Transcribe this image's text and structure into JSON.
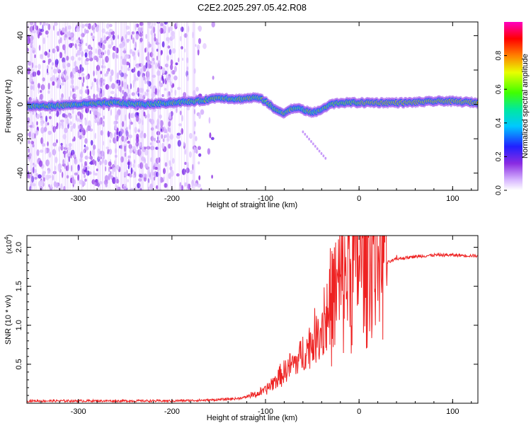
{
  "title": "C2E2.2025.297.05.42.R08",
  "chart_data": [
    {
      "type": "heatmap",
      "title": "C2E2.2025.297.05.42.R08",
      "xlabel": "Height of straight line (km)",
      "ylabel": "Frequency (Hz)",
      "xlim": [
        -355,
        127
      ],
      "ylim": [
        -50,
        48
      ],
      "xticks": [
        -300,
        -200,
        -100,
        0,
        100
      ],
      "xtick_labels": [
        "-300",
        "-200",
        "-100",
        "0",
        "100"
      ],
      "yticks": [
        -40,
        -20,
        0,
        20,
        40
      ],
      "ytick_labels": [
        "-40",
        "-20",
        "0",
        "20",
        "40"
      ],
      "colorbar": {
        "label": "Normalized spectral amplitude",
        "range": [
          0,
          1
        ],
        "ticks": [
          0.0,
          0.2,
          0.4,
          0.6,
          0.8
        ],
        "tick_labels": [
          "0.0",
          "0.2",
          "0.4",
          "0.6",
          "0.8"
        ],
        "colormap": "rainbow (white-violet-blue-cyan-green-yellow-red-magenta)"
      },
      "ridge": {
        "description": "Main spectral ridge frequency vs height",
        "x": [
          -355,
          -330,
          -300,
          -260,
          -230,
          -200,
          -170,
          -150,
          -130,
          -110,
          -100,
          -90,
          -80,
          -70,
          -60,
          -50,
          -40,
          -30,
          -20,
          0,
          50,
          90,
          127
        ],
        "y": [
          -1,
          -1,
          0,
          1,
          0,
          1,
          2,
          4,
          3,
          4,
          2,
          -3,
          -5,
          -2,
          -3,
          -5,
          -3,
          0,
          1,
          1,
          1,
          2,
          1
        ]
      }
    },
    {
      "type": "line",
      "title": "",
      "xlabel": "Height of straight line (km)",
      "ylabel": "SNR (10 * v/v)",
      "y_scale_label": "(x10",
      "y_scale_exp": "4",
      "y_scale_close": ")",
      "xlim": [
        -355,
        127
      ],
      "ylim": [
        0.0,
        2.15
      ],
      "xticks": [
        -300,
        -200,
        -100,
        0,
        100
      ],
      "xtick_labels": [
        "-300",
        "-200",
        "-100",
        "0",
        "100"
      ],
      "yticks": [
        0.5,
        1.0,
        1.5,
        2.0
      ],
      "ytick_labels": [
        "0.5",
        "1.0",
        "1.5",
        "2.0"
      ],
      "series": [
        {
          "name": "SNR",
          "color": "#ee2222",
          "envelope": {
            "x": [
              -355,
              -250,
              -200,
              -160,
              -130,
              -110,
              -100,
              -90,
              -80,
              -70,
              -60,
              -50,
              -40,
              -30,
              -20,
              -10,
              0,
              10,
              20,
              30,
              40,
              60,
              80,
              100,
              127
            ],
            "y": [
              0.03,
              0.03,
              0.03,
              0.04,
              0.06,
              0.1,
              0.15,
              0.25,
              0.35,
              0.45,
              0.55,
              0.7,
              0.85,
              1.05,
              1.25,
              1.45,
              1.55,
              1.6,
              1.7,
              1.8,
              1.85,
              1.88,
              1.9,
              1.9,
              1.89
            ]
          }
        }
      ]
    }
  ]
}
